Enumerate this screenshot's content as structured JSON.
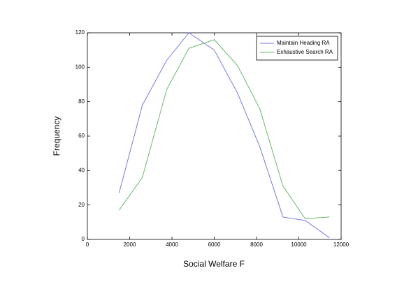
{
  "chart_data": {
    "type": "line",
    "x_label": "Social Welfare F",
    "y_label": "Frequency",
    "x": [
      1500,
      2600,
      3750,
      4800,
      6000,
      7100,
      8150,
      9250,
      10300,
      11450
    ],
    "series": [
      {
        "name": "Maintain Heading RA",
        "color": "#7777ee",
        "values": [
          27,
          78,
          104,
          120,
          110,
          85,
          54,
          13,
          11,
          1
        ]
      },
      {
        "name": "Exhaustive Search RA",
        "color": "#66bb66",
        "values": [
          17,
          36,
          87,
          111,
          116,
          101,
          76,
          31,
          12,
          13
        ]
      }
    ],
    "xlim": [
      0,
      12000
    ],
    "xticks": [
      0,
      2000,
      4000,
      6000,
      8000,
      10000,
      12000
    ],
    "ylim": [
      0,
      120
    ],
    "yticks": [
      0,
      20,
      40,
      60,
      80,
      100,
      120
    ],
    "legend": "upper right"
  }
}
